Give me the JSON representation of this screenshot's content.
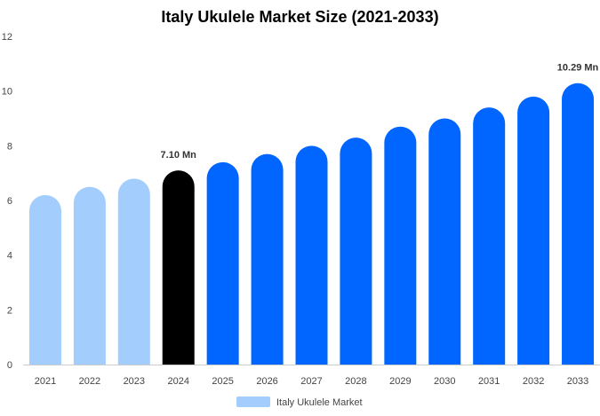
{
  "chart_data": {
    "type": "bar",
    "title": "Italy Ukulele Market Size (2021-2033)",
    "xlabel": "",
    "ylabel": "",
    "ylim": [
      0,
      12
    ],
    "yticks": [
      0,
      2,
      4,
      6,
      8,
      10,
      12
    ],
    "grid": false,
    "legend_position": "bottom",
    "categories": [
      "2021",
      "2022",
      "2023",
      "2024",
      "2025",
      "2026",
      "2027",
      "2028",
      "2029",
      "2030",
      "2031",
      "2032",
      "2033"
    ],
    "series": [
      {
        "name": "Italy Ukulele Market",
        "values": [
          6.2,
          6.5,
          6.8,
          7.1,
          7.4,
          7.7,
          8.0,
          8.3,
          8.7,
          9.0,
          9.4,
          9.8,
          10.29
        ],
        "colors": [
          "#a3cdfd",
          "#a3cdfd",
          "#a3cdfd",
          "#000000",
          "#0066ff",
          "#0066ff",
          "#0066ff",
          "#0066ff",
          "#0066ff",
          "#0066ff",
          "#0066ff",
          "#0066ff",
          "#0066ff"
        ]
      }
    ],
    "data_labels": [
      {
        "category": "2024",
        "text": "7.10 Mn"
      },
      {
        "category": "2033",
        "text": "10.29 Mn"
      }
    ],
    "legend_color": "#a3cdfd",
    "axis_color": "#cccccc"
  }
}
